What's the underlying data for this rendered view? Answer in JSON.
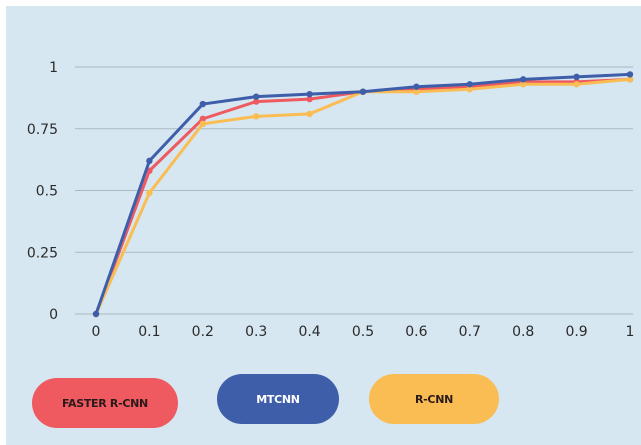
{
  "chart_data": {
    "type": "line",
    "title": "",
    "xlabel": "",
    "ylabel": "",
    "x": [
      0,
      0.1,
      0.2,
      0.3,
      0.4,
      0.5,
      0.6,
      0.7,
      0.8,
      0.9,
      1
    ],
    "x_tick_labels": [
      "0",
      "0.1",
      "0.2",
      "0.3",
      "0.4",
      "0.5",
      "0.6",
      "0.7",
      "0.8",
      "0.9",
      "1"
    ],
    "xlim": [
      0,
      1
    ],
    "ylim": [
      0,
      1
    ],
    "y_ticks": [
      0,
      0.25,
      0.5,
      0.75,
      1
    ],
    "y_tick_labels": [
      "0",
      "0.25",
      "0.5",
      "0.75",
      "1"
    ],
    "grid": "horizontal",
    "legend_placement": "bottom",
    "series": [
      {
        "name": "FASTER R-CNN",
        "color": "#ee5a5f",
        "text_color": "#2a1a1a",
        "values": [
          0,
          0.58,
          0.79,
          0.86,
          0.87,
          0.9,
          0.91,
          0.92,
          0.94,
          0.94,
          0.95
        ]
      },
      {
        "name": "MTCNN",
        "color": "#3f5ea9",
        "text_color": "#ffffff",
        "values": [
          0,
          0.62,
          0.85,
          0.88,
          0.89,
          0.9,
          0.92,
          0.93,
          0.95,
          0.96,
          0.97
        ]
      },
      {
        "name": "R-CNN",
        "color": "#f9bd54",
        "text_color": "#2a1a1a",
        "values": [
          0,
          0.49,
          0.77,
          0.8,
          0.81,
          0.9,
          0.9,
          0.91,
          0.93,
          0.93,
          0.95
        ]
      }
    ]
  }
}
